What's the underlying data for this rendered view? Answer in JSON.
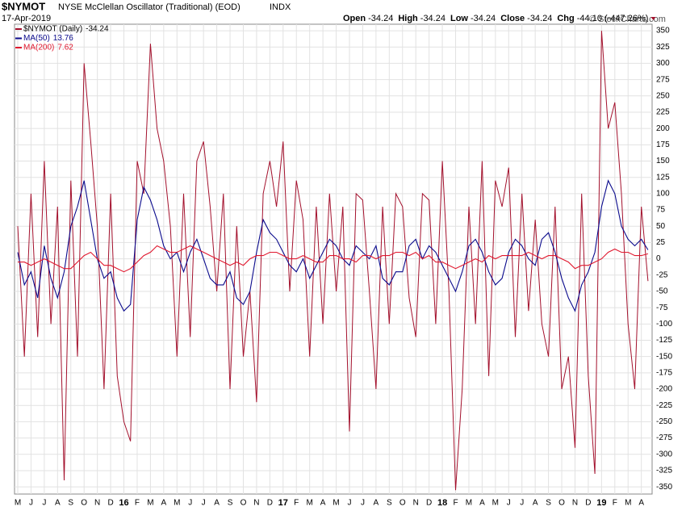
{
  "header": {
    "symbol": "$NYMOT",
    "name": "NYSE McClellan Oscillator (Traditional) (EOD)",
    "exchange": "INDX",
    "date": "17-Apr-2019",
    "quote": [
      {
        "label": "Open",
        "value": "-34.24"
      },
      {
        "label": "High",
        "value": "-34.24"
      },
      {
        "label": "Low",
        "value": "-34.24"
      },
      {
        "label": "Close",
        "value": "-34.24"
      },
      {
        "label": "Chg",
        "value": "-44.10 (-447.26%)"
      }
    ],
    "watermark": "© StockCharts.com"
  },
  "chart_data": {
    "type": "line",
    "categories": [
      "M",
      null,
      "J",
      null,
      "J",
      null,
      "A",
      null,
      "S",
      null,
      "O",
      null,
      "N",
      null,
      "D",
      null,
      "16",
      null,
      "F",
      null,
      "M",
      null,
      "A",
      null,
      "M",
      null,
      "J",
      null,
      "J",
      null,
      "A",
      null,
      "S",
      null,
      "O",
      null,
      "N",
      null,
      "D",
      null,
      "17",
      null,
      "F",
      null,
      "M",
      null,
      "A",
      null,
      "M",
      null,
      "J",
      null,
      "J",
      null,
      "A",
      null,
      "S",
      null,
      "O",
      null,
      "N",
      null,
      "D",
      null,
      "18",
      null,
      "F",
      null,
      "M",
      null,
      "A",
      null,
      "M",
      null,
      "J",
      null,
      "J",
      null,
      "A",
      null,
      "S",
      null,
      "O",
      null,
      "N",
      null,
      "D",
      null,
      "19",
      null,
      "F",
      null,
      "M",
      null,
      "A",
      null
    ],
    "series": [
      {
        "name": "$NYMOT (Daily)",
        "color": "#a3102c",
        "values": [
          50,
          -150,
          100,
          -120,
          150,
          -100,
          80,
          -340,
          120,
          -150,
          300,
          180,
          50,
          -200,
          100,
          -180,
          -250,
          -280,
          150,
          100,
          330,
          200,
          150,
          50,
          -150,
          100,
          -120,
          150,
          180,
          80,
          -50,
          100,
          -200,
          50,
          -150,
          -50,
          -220,
          100,
          150,
          80,
          180,
          -50,
          120,
          60,
          -150,
          80,
          -100,
          100,
          -50,
          80,
          -265,
          100,
          90,
          -50,
          -200,
          80,
          -100,
          100,
          80,
          -60,
          -120,
          100,
          90,
          -100,
          150,
          -50,
          -355,
          -200,
          80,
          -100,
          150,
          -180,
          120,
          80,
          140,
          -120,
          100,
          -80,
          60,
          -100,
          -150,
          80,
          -200,
          -150,
          -290,
          100,
          -180,
          -330,
          350,
          200,
          240,
          100,
          -100,
          -200,
          80,
          -34.24
        ]
      },
      {
        "name": "MA(50)",
        "color": "#0a0a8c",
        "values": [
          10,
          -40,
          -20,
          -60,
          20,
          -30,
          -60,
          -20,
          50,
          80,
          120,
          60,
          0,
          -30,
          -20,
          -60,
          -80,
          -70,
          60,
          110,
          90,
          60,
          20,
          0,
          10,
          -20,
          10,
          30,
          0,
          -30,
          -40,
          -40,
          -20,
          -60,
          -70,
          -50,
          10,
          60,
          40,
          30,
          10,
          -10,
          -20,
          0,
          -30,
          -10,
          10,
          30,
          20,
          0,
          -10,
          20,
          10,
          0,
          20,
          -30,
          -40,
          -20,
          -20,
          20,
          30,
          0,
          20,
          10,
          -10,
          -30,
          -50,
          -20,
          20,
          30,
          10,
          -20,
          -40,
          -30,
          10,
          30,
          20,
          0,
          -10,
          30,
          40,
          10,
          -30,
          -60,
          -80,
          -40,
          -20,
          10,
          80,
          120,
          100,
          50,
          30,
          20,
          30,
          13.76
        ]
      },
      {
        "name": "MA(200)",
        "color": "#e0182e",
        "values": [
          -5,
          -5,
          -10,
          -5,
          0,
          -5,
          -10,
          -15,
          -15,
          -5,
          5,
          10,
          0,
          -10,
          -10,
          -15,
          -20,
          -15,
          -5,
          5,
          10,
          20,
          15,
          10,
          10,
          15,
          20,
          15,
          10,
          5,
          0,
          -5,
          -10,
          -5,
          -10,
          0,
          5,
          5,
          10,
          10,
          5,
          0,
          0,
          5,
          0,
          -5,
          -5,
          5,
          5,
          0,
          0,
          -5,
          5,
          5,
          0,
          5,
          5,
          10,
          10,
          5,
          10,
          0,
          5,
          -5,
          -5,
          -10,
          -15,
          -10,
          -5,
          0,
          -5,
          5,
          0,
          5,
          5,
          5,
          5,
          10,
          5,
          0,
          5,
          5,
          0,
          -5,
          -15,
          -10,
          -10,
          -5,
          0,
          10,
          15,
          10,
          10,
          5,
          5,
          7.62
        ]
      }
    ],
    "ylim": [
      -361,
      360
    ],
    "yticks": [
      -350,
      -325,
      -300,
      -275,
      -250,
      -225,
      -200,
      -175,
      -150,
      -125,
      -100,
      -75,
      -50,
      -25,
      0,
      25,
      50,
      75,
      100,
      125,
      150,
      175,
      200,
      225,
      250,
      275,
      300,
      325,
      350
    ],
    "grid": true,
    "legend": "top-left"
  }
}
